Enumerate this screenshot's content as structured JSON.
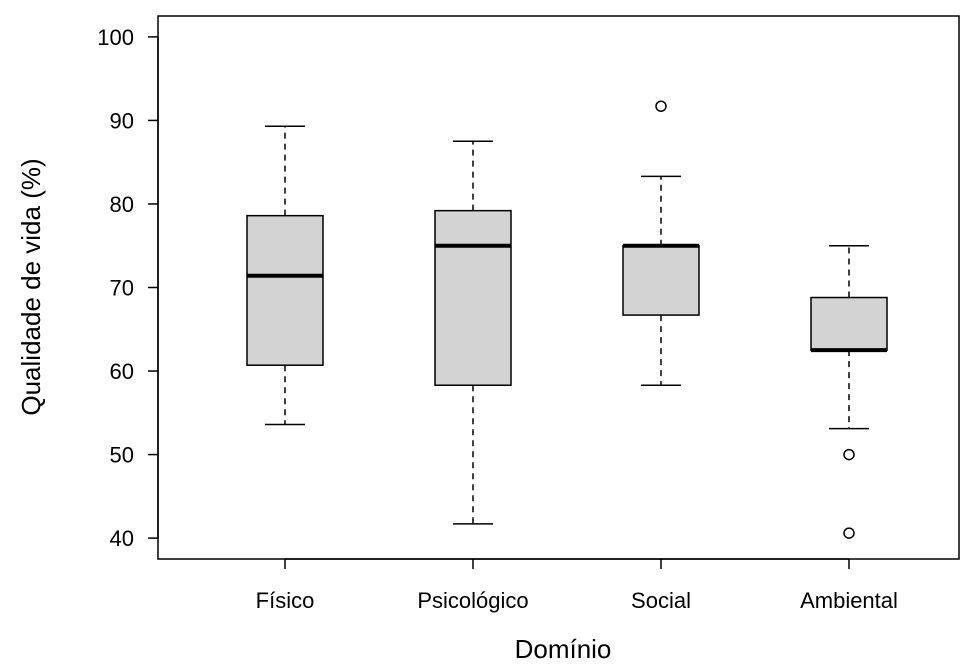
{
  "chart_data": {
    "type": "boxplot",
    "title": "",
    "xlabel": "Domínio",
    "ylabel": "Qualidade de vida (%)",
    "ylim": [
      37.5,
      102.5
    ],
    "yticks": [
      40,
      50,
      60,
      70,
      80,
      90,
      100
    ],
    "grid": false,
    "legend": "none",
    "categories": [
      "Físico",
      "Psicológico",
      "Social",
      "Ambiental"
    ],
    "boxes": [
      {
        "category": "Físico",
        "whisker_low": 53.6,
        "q1": 60.7,
        "median": 71.4,
        "q3": 78.6,
        "whisker_high": 89.3,
        "outliers": []
      },
      {
        "category": "Psicológico",
        "whisker_low": 41.7,
        "q1": 58.3,
        "median": 75.0,
        "q3": 79.2,
        "whisker_high": 87.5,
        "outliers": []
      },
      {
        "category": "Social",
        "whisker_low": 58.3,
        "q1": 66.7,
        "median": 75.0,
        "q3": 75.0,
        "whisker_high": 83.3,
        "outliers": [
          91.7
        ]
      },
      {
        "category": "Ambiental",
        "whisker_low": 53.1,
        "q1": 62.5,
        "median": 62.5,
        "q3": 68.8,
        "whisker_high": 75.0,
        "outliers": [
          50.0,
          40.6
        ]
      }
    ],
    "colors": {
      "box_fill": "#d3d3d3",
      "stroke": "#000000"
    }
  }
}
